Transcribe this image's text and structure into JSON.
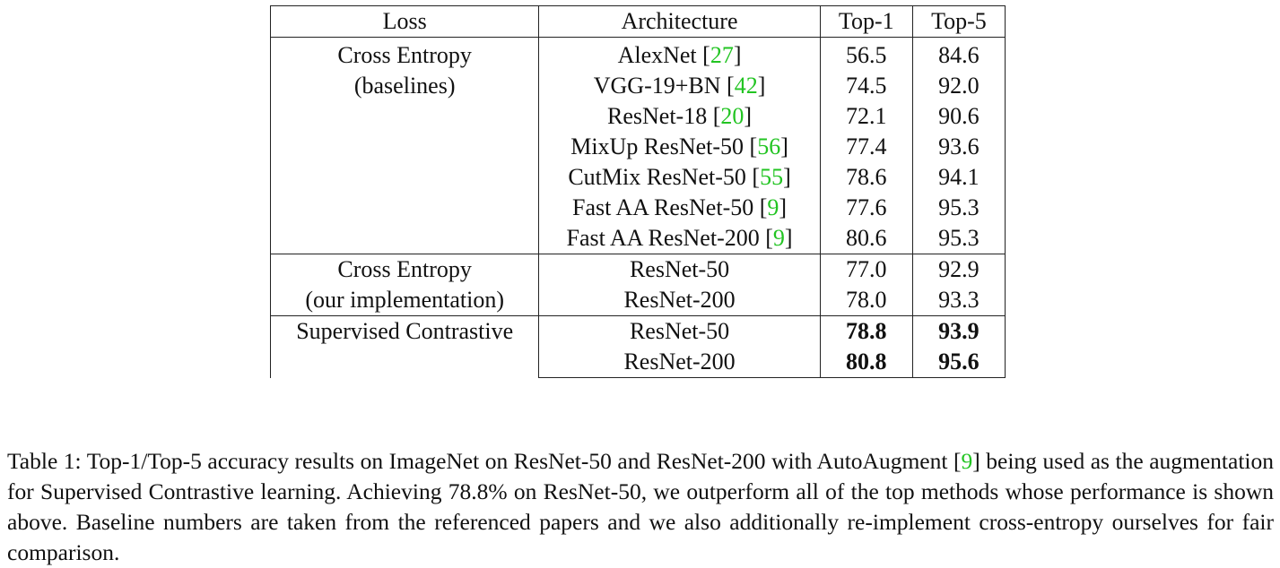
{
  "table": {
    "headers": [
      "Loss",
      "Architecture",
      "Top-1",
      "Top-5"
    ],
    "groups": [
      {
        "loss_lines": [
          "Cross Entropy",
          "(baselines)"
        ],
        "rows": [
          {
            "arch": "AlexNet",
            "cite": "27",
            "top1": "56.5",
            "top5": "84.6",
            "bold": false
          },
          {
            "arch": "VGG-19+BN",
            "cite": "42",
            "top1": "74.5",
            "top5": "92.0",
            "bold": false
          },
          {
            "arch": "ResNet-18",
            "cite": "20",
            "top1": "72.1",
            "top5": "90.6",
            "bold": false
          },
          {
            "arch": "MixUp ResNet-50",
            "cite": "56",
            "top1": "77.4",
            "top5": "93.6",
            "bold": false
          },
          {
            "arch": "CutMix ResNet-50",
            "cite": "55",
            "top1": "78.6",
            "top5": "94.1",
            "bold": false
          },
          {
            "arch": "Fast AA ResNet-50",
            "cite": "9",
            "top1": "77.6",
            "top5": "95.3",
            "bold": false
          },
          {
            "arch": "Fast AA ResNet-200",
            "cite": "9",
            "top1": "80.6",
            "top5": "95.3",
            "bold": false
          }
        ]
      },
      {
        "loss_lines": [
          "Cross Entropy",
          "(our implementation)"
        ],
        "rows": [
          {
            "arch": "ResNet-50",
            "cite": "",
            "top1": "77.0",
            "top5": "92.9",
            "bold": false
          },
          {
            "arch": "ResNet-200",
            "cite": "",
            "top1": "78.0",
            "top5": "93.3",
            "bold": false
          }
        ]
      },
      {
        "loss_lines": [
          "Supervised Contrastive"
        ],
        "rows": [
          {
            "arch": "ResNet-50",
            "cite": "",
            "top1": "78.8",
            "top5": "93.9",
            "bold": true
          },
          {
            "arch": "ResNet-200",
            "cite": "",
            "top1": "80.8",
            "top5": "95.6",
            "bold": true
          }
        ]
      }
    ]
  },
  "caption": {
    "part1": "Table 1: Top-1/Top-5 accuracy results on ImageNet on ResNet-50 and ResNet-200 with AutoAugment [",
    "cite": "9",
    "part2": "] being used as the augmentation for Supervised Contrastive learning. Achieving 78.8% on ResNet-50, we outperform all of the top methods whose performance is shown above. Baseline numbers are taken from the referenced papers and we also additionally re-implement cross-entropy ourselves for fair comparison."
  },
  "colors": {
    "citation": "#22c422",
    "text": "#111111"
  }
}
